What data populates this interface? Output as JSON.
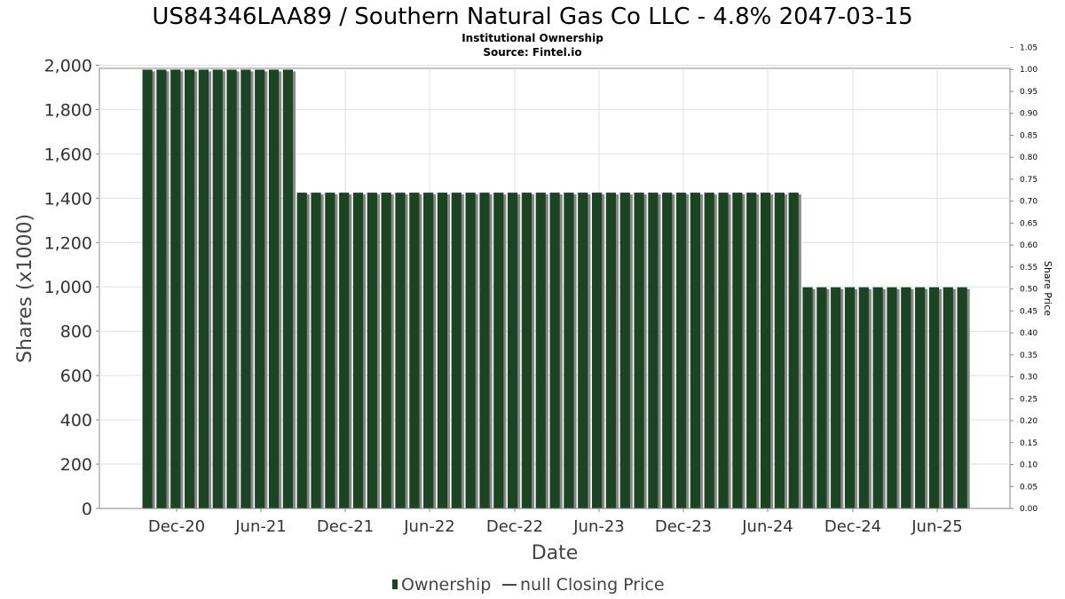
{
  "chart_data": {
    "type": "bar",
    "title": "US84346LAA89 / Southern Natural Gas Co LLC - 4.8% 2047-03-15",
    "subtitle_1": "Institutional Ownership",
    "subtitle_2": "Source: Fintel.io",
    "xlabel": "Date",
    "ylabel": "Shares (x1000)",
    "y2label": "Share Price",
    "ylim": [
      0,
      2080
    ],
    "y2lim": [
      0,
      1.05
    ],
    "yticks": [
      "0",
      "200",
      "400",
      "600",
      "800",
      "1,000",
      "1,200",
      "1,400",
      "1,600",
      "1,800",
      "2,000"
    ],
    "y2ticks": [
      "0.00",
      "0.05",
      "0.10",
      "0.15",
      "0.20",
      "0.25",
      "0.30",
      "0.35",
      "0.40",
      "0.45",
      "0.50",
      "0.55",
      "0.60",
      "0.65",
      "0.70",
      "0.75",
      "0.80",
      "0.85",
      "0.90",
      "0.95",
      "1.00",
      "1.05"
    ],
    "xticks": [
      "Dec-20",
      "Jun-21",
      "Dec-21",
      "Jun-22",
      "Dec-22",
      "Jun-23",
      "Dec-23",
      "Jun-24",
      "Dec-24",
      "Jun-25"
    ],
    "grid": true,
    "legend_position": "bottom",
    "series": [
      {
        "name": "Ownership",
        "type": "bar",
        "color": "#1b4423",
        "values": [
          1980,
          1980,
          1980,
          1980,
          1980,
          1980,
          1980,
          1980,
          1980,
          1980,
          1980,
          1425,
          1425,
          1425,
          1425,
          1425,
          1425,
          1425,
          1425,
          1425,
          1425,
          1425,
          1425,
          1425,
          1425,
          1425,
          1425,
          1425,
          1425,
          1425,
          1425,
          1425,
          1425,
          1425,
          1425,
          1425,
          1425,
          1425,
          1425,
          1425,
          1425,
          1425,
          1425,
          1425,
          1425,
          1425,
          1425,
          998,
          998,
          998,
          998,
          998,
          998,
          998,
          998,
          998,
          998,
          998,
          998
        ]
      },
      {
        "name": "null Closing Price",
        "type": "line",
        "color": "#444444",
        "values": []
      }
    ]
  }
}
